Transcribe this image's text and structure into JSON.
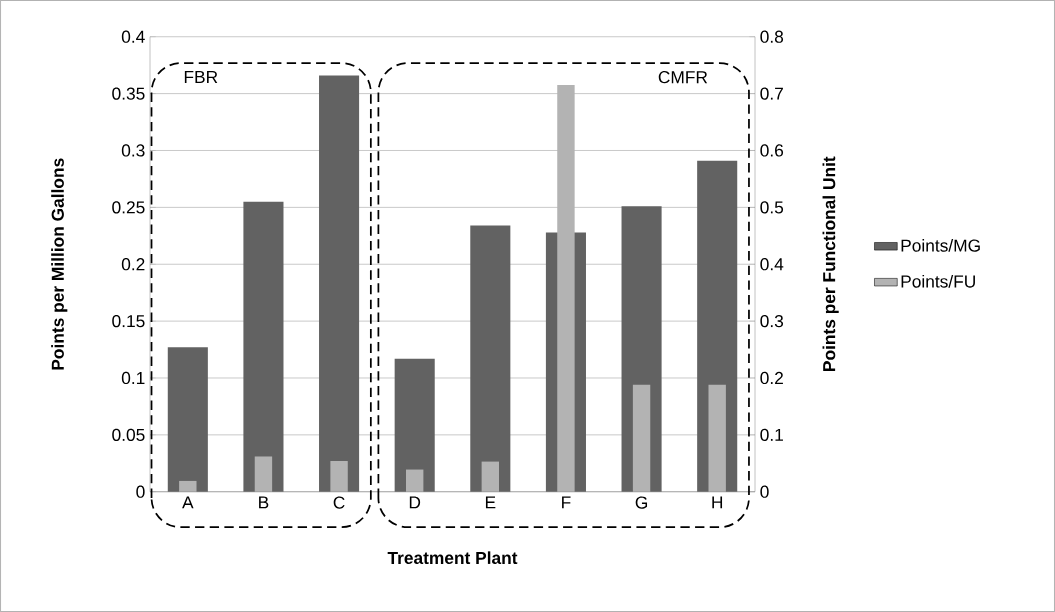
{
  "chart_data": {
    "type": "bar",
    "xlabel": "Treatment Plant",
    "ylabel": "Points per Million Gallons",
    "y2label": "Points per Functional Unit",
    "categories": [
      "A",
      "B",
      "C",
      "D",
      "E",
      "F",
      "G",
      "H"
    ],
    "series": [
      {
        "name": "Points/MG",
        "color": "#626262",
        "values": [
          0.127,
          0.255,
          0.366,
          0.117,
          0.234,
          0.228,
          0.251,
          0.291
        ]
      },
      {
        "name": "Points/FU",
        "color": "#b3b3b3",
        "axis": "y2",
        "values": [
          0.019,
          0.062,
          0.054,
          0.039,
          0.053,
          0.715,
          0.188,
          0.188
        ]
      }
    ],
    "ylim": [
      0,
      0.4
    ],
    "yticks": [
      0,
      0.05,
      0.1,
      0.15,
      0.2,
      0.25,
      0.3,
      0.35,
      0.4
    ],
    "y2lim": [
      0,
      0.8
    ],
    "y2ticks": [
      0,
      0.1,
      0.2,
      0.3,
      0.4,
      0.5,
      0.6,
      0.7,
      0.8
    ],
    "grid": "y",
    "legend": "right",
    "annotations": [
      "FBR",
      "CMFR"
    ]
  }
}
